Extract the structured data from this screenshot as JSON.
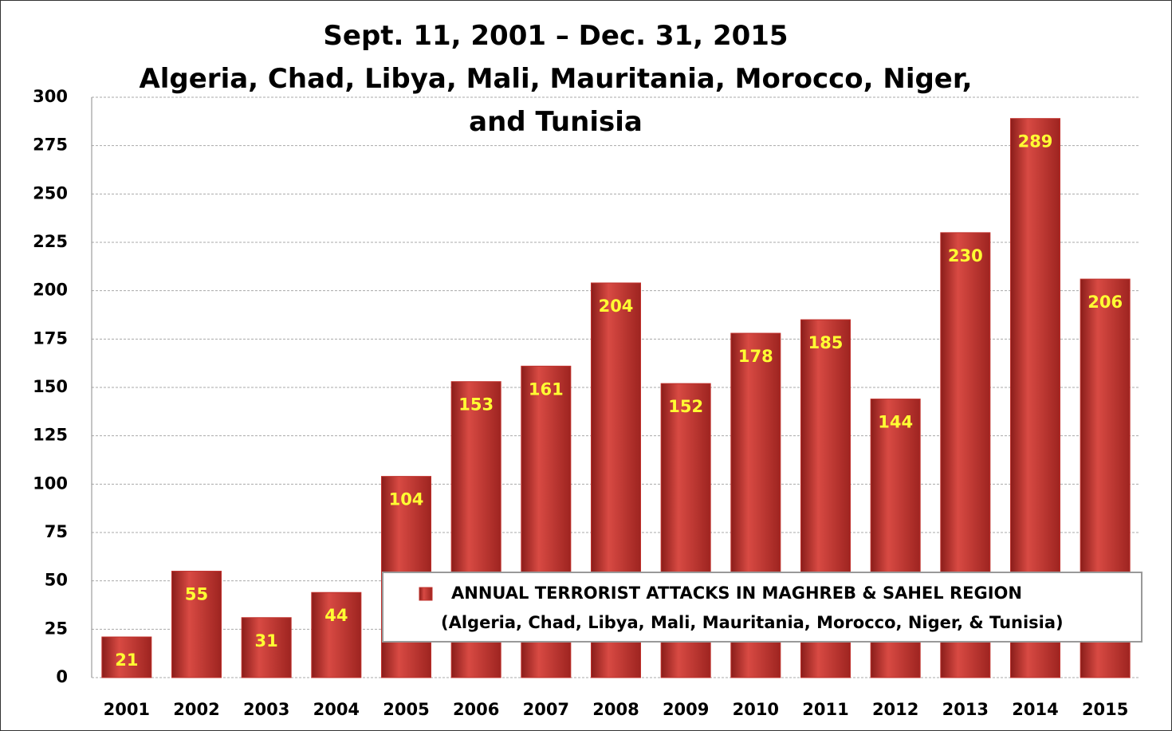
{
  "chart_data": {
    "type": "bar",
    "title": "Sept. 11, 2001 – Dec. 31, 2015",
    "subtitle": "Algeria, Chad, Libya, Mali, Mauritania, Morocco, Niger, and Tunisia",
    "categories": [
      "2001",
      "2002",
      "2003",
      "2004",
      "2005",
      "2006",
      "2007",
      "2008",
      "2009",
      "2010",
      "2011",
      "2012",
      "2013",
      "2014",
      "2015"
    ],
    "series": [
      {
        "name": "ANNUAL TERRORIST ATTACKS IN MAGHREB & SAHEL REGION",
        "color": "#c0302b",
        "values": [
          21,
          55,
          31,
          44,
          104,
          153,
          161,
          204,
          152,
          178,
          185,
          144,
          230,
          289,
          206
        ]
      }
    ],
    "legend_note": "(Algeria, Chad, Libya, Mali, Mauritania, Morocco, Niger, & Tunisia)",
    "ylim": [
      0,
      300
    ],
    "yticks": [
      0,
      25,
      50,
      75,
      100,
      125,
      150,
      175,
      200,
      225,
      250,
      275,
      300
    ],
    "grid": true,
    "legend_position": "lower right"
  }
}
